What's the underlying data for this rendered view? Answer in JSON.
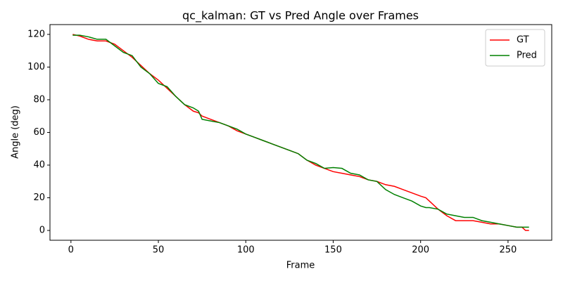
{
  "chart_data": {
    "type": "line",
    "title": "qc_kalman: GT vs Pred Angle over Frames",
    "xlabel": "Frame",
    "ylabel": "Angle (deg)",
    "x": [
      1,
      5,
      10,
      15,
      20,
      25,
      30,
      35,
      40,
      45,
      50,
      55,
      60,
      65,
      70,
      73,
      75,
      80,
      85,
      90,
      95,
      100,
      105,
      110,
      115,
      120,
      125,
      130,
      135,
      140,
      145,
      150,
      155,
      160,
      165,
      170,
      175,
      180,
      185,
      190,
      195,
      200,
      203,
      205,
      210,
      215,
      220,
      225,
      230,
      235,
      240,
      245,
      250,
      255,
      258,
      260,
      262
    ],
    "series": [
      {
        "name": "GT",
        "color": "#ff0000",
        "values": [
          120,
          119,
          117,
          116,
          116,
          114,
          110,
          106,
          101,
          96,
          92,
          87,
          82,
          77,
          73,
          72,
          70,
          68,
          66,
          64,
          61,
          59,
          57,
          55,
          53,
          51,
          49,
          47,
          43,
          40,
          38,
          36,
          35,
          34,
          33,
          31,
          30,
          28,
          27,
          25,
          23,
          21,
          20,
          18,
          13,
          9,
          6,
          6,
          6,
          5,
          4,
          4,
          3,
          2,
          2,
          0,
          0
        ]
      },
      {
        "name": "Pred",
        "color": "#008000",
        "values": [
          119.5,
          119.5,
          118.5,
          117,
          117,
          113,
          109,
          107,
          100,
          96,
          90,
          88,
          82,
          77,
          75,
          73,
          68,
          67,
          66,
          64,
          62,
          59,
          57,
          55,
          53,
          51,
          49,
          47,
          43,
          41,
          38,
          38.5,
          38,
          35,
          34,
          31,
          30,
          25,
          22,
          20,
          18,
          15,
          14,
          14,
          13,
          10,
          9,
          8,
          8,
          6,
          5,
          4,
          3,
          2,
          2,
          2,
          2
        ]
      }
    ],
    "xlim": [
      -12,
      275
    ],
    "ylim": [
      -6,
      126
    ],
    "xticks": [
      0,
      50,
      100,
      150,
      200,
      250
    ],
    "yticks": [
      0,
      20,
      40,
      60,
      80,
      100,
      120
    ],
    "grid": false,
    "legend": "upper right"
  }
}
